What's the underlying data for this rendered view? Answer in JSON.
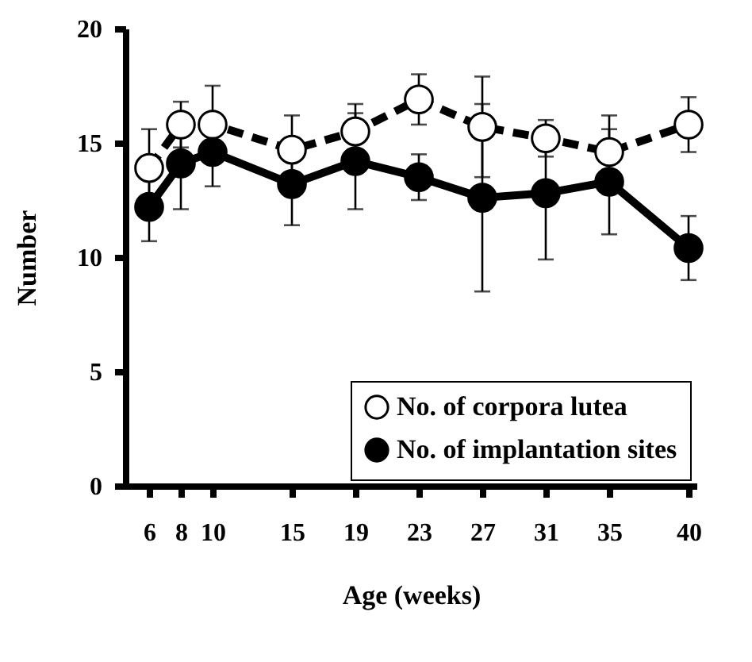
{
  "chart_data": {
    "type": "line",
    "xlabel": "Age (weeks)",
    "ylabel": "Number",
    "x": [
      6,
      8,
      10,
      15,
      19,
      23,
      27,
      31,
      35,
      40
    ],
    "xlim": [
      4.5,
      40.5
    ],
    "xticks": [
      6,
      8,
      10,
      15,
      19,
      23,
      27,
      31,
      35,
      40
    ],
    "ylim": [
      0,
      20
    ],
    "yticks": [
      0,
      5,
      10,
      15,
      20
    ],
    "grid": false,
    "legend": "bottom",
    "marker": "circle",
    "series": [
      {
        "name": "No. of corpora lutea",
        "color": "#000000",
        "line_style": "dashed",
        "values": [
          13.9,
          15.8,
          15.8,
          14.7,
          15.5,
          16.9,
          15.7,
          15.2,
          14.6,
          15.8
        ],
        "errors": [
          1.7,
          1.0,
          1.7,
          1.5,
          1.2,
          1.1,
          2.2,
          0.8,
          1.6,
          1.2
        ]
      },
      {
        "name": "No. of implantation sites",
        "color": "#000000",
        "line_style": "solid",
        "values": [
          12.2,
          14.1,
          14.6,
          13.2,
          14.2,
          13.5,
          12.6,
          12.8,
          13.3,
          10.4
        ],
        "errors": [
          1.5,
          2.0,
          1.5,
          1.8,
          2.1,
          1.0,
          4.1,
          2.9,
          2.3,
          1.4
        ]
      }
    ]
  }
}
